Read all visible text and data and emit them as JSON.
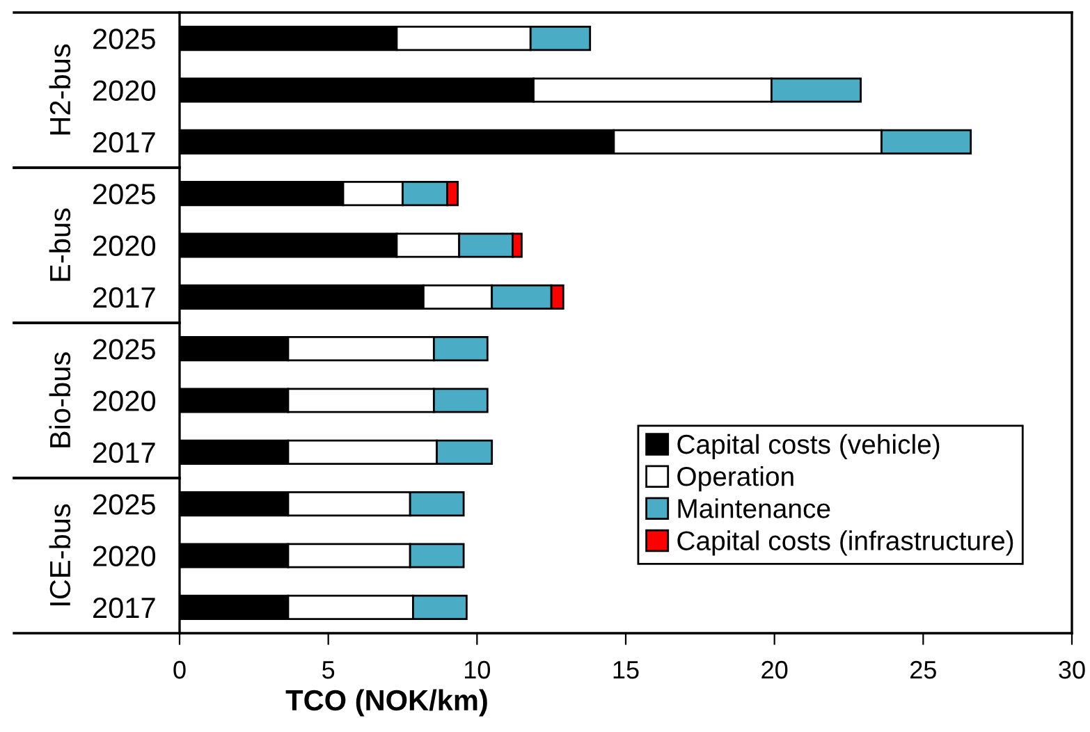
{
  "chart_data": {
    "type": "bar",
    "orientation": "horizontal",
    "stacked": true,
    "categories": [
      "2025",
      "2020",
      "2017",
      "2025",
      "2020",
      "2017",
      "2025",
      "2020",
      "2017",
      "2025",
      "2020",
      "2017"
    ],
    "series": [
      {
        "name": "Capital costs (vehicle)",
        "color": "#000000",
        "values": [
          7.3,
          11.9,
          14.6,
          5.5,
          7.3,
          8.2,
          3.65,
          3.65,
          3.65,
          3.65,
          3.65,
          3.65
        ]
      },
      {
        "name": "Operation",
        "color": "#ffffff",
        "values": [
          4.5,
          8.0,
          9.0,
          2.0,
          2.1,
          2.3,
          4.9,
          4.9,
          5.0,
          4.1,
          4.1,
          4.2
        ]
      },
      {
        "name": "Maintenance",
        "color": "#4bacc6",
        "values": [
          2.0,
          3.0,
          3.0,
          1.5,
          1.8,
          2.0,
          1.8,
          1.8,
          1.85,
          1.8,
          1.8,
          1.8
        ]
      },
      {
        "name": "Capital costs (infrastructure)",
        "color": "#ff0000",
        "values": [
          null,
          null,
          null,
          0.35,
          0.3,
          0.4,
          null,
          null,
          null,
          null,
          null,
          null
        ]
      }
    ],
    "xlabel": "TCO (NOK/km)",
    "annotations": [
      "H2-bus",
      "E-bus",
      "Bio-bus",
      "ICE-bus"
    ],
    "xlim": [
      0,
      30
    ],
    "xticks": [
      0,
      5,
      10,
      15,
      20,
      25,
      30
    ],
    "grid": false,
    "legend": "bottom right"
  }
}
